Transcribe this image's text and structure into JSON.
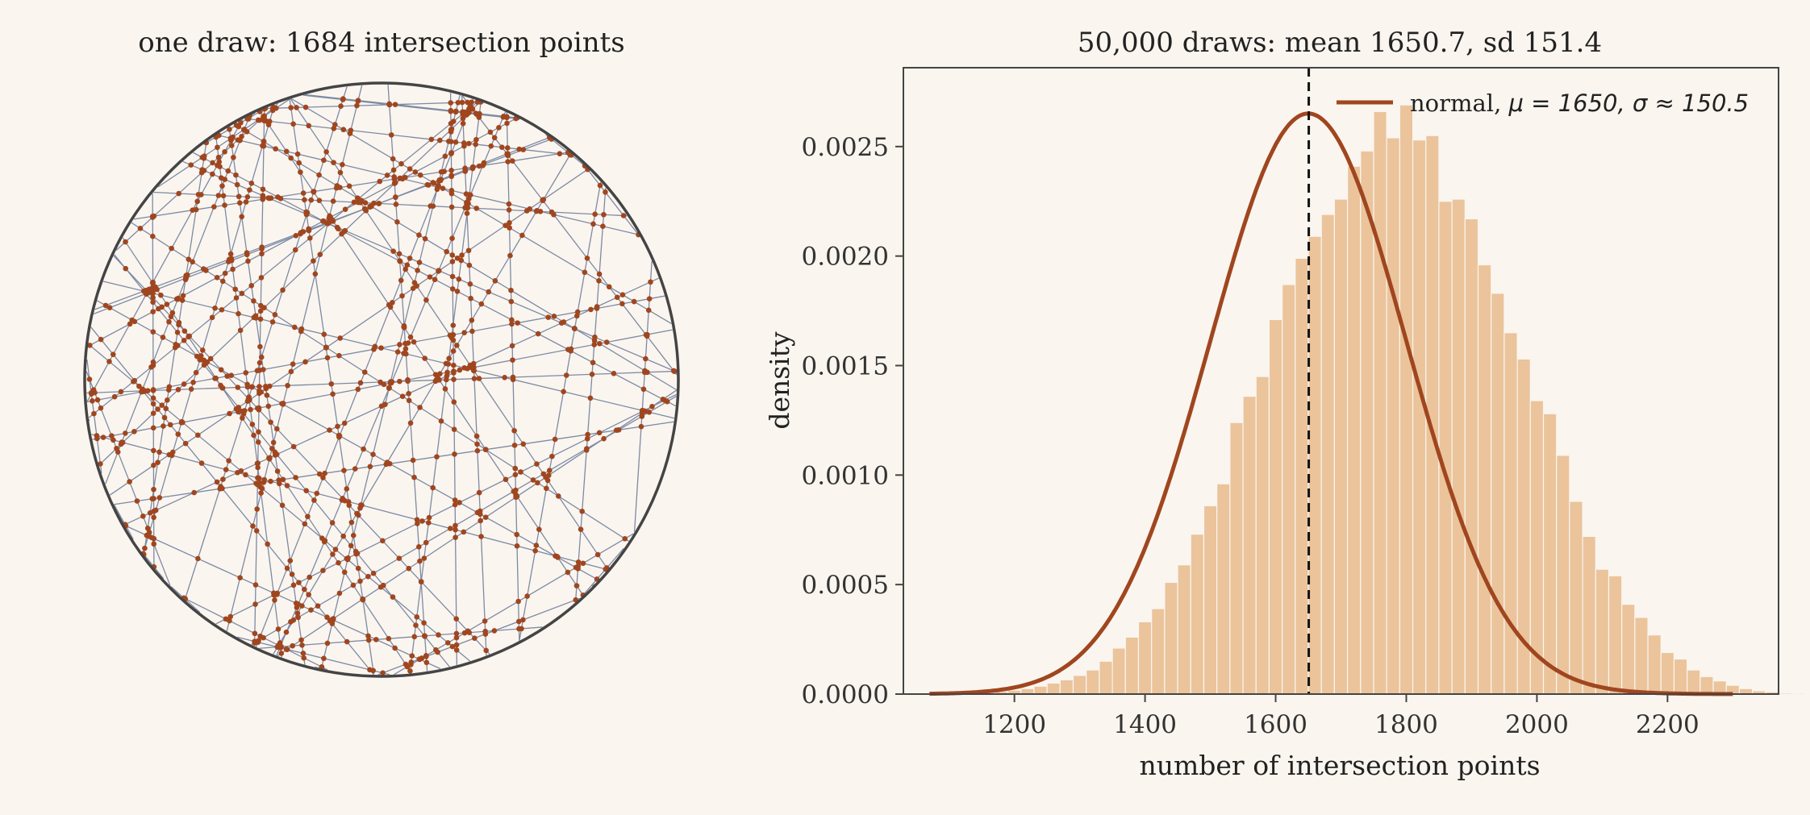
{
  "chart_data": [
    {
      "type": "scatter",
      "title": "one draw: 1684 intersection points",
      "shape": "circle",
      "point_color": "#a0461f",
      "line_color": "#7d8aa3",
      "circle_color": "#444444"
    },
    {
      "type": "bar",
      "title": "50,000 draws: mean 1650.7, sd 151.4",
      "xlabel": "number of intersection points",
      "ylabel": "density",
      "xlim": [
        1030,
        2370
      ],
      "ylim": [
        0,
        0.00286
      ],
      "xticks": [
        "1200",
        "1400",
        "1600",
        "1800",
        "2000",
        "2200"
      ],
      "yticks": [
        "0.0000",
        "0.0005",
        "0.0010",
        "0.0015",
        "0.0020",
        "0.0025"
      ],
      "bin_width": 20,
      "bins_start": 1070,
      "values": [
        4e-06,
        5e-06,
        6e-06,
        8e-06,
        1e-05,
        1.2e-05,
        1.8e-05,
        2.5e-05,
        3.6e-05,
        5e-05,
        6.5e-05,
        8.5e-05,
        0.00011,
        0.00015,
        0.00021,
        0.00026,
        0.00033,
        0.00039,
        0.00051,
        0.00059,
        0.00073,
        0.00086,
        0.00096,
        0.00124,
        0.00136,
        0.00145,
        0.00171,
        0.00187,
        0.00199,
        0.00209,
        0.00219,
        0.00226,
        0.00241,
        0.00248,
        0.00266,
        0.00254,
        0.00269,
        0.00253,
        0.00255,
        0.00225,
        0.00226,
        0.00217,
        0.00196,
        0.00183,
        0.00165,
        0.00153,
        0.00134,
        0.00128,
        0.00109,
        0.00088,
        0.00072,
        0.00057,
        0.00054,
        0.00041,
        0.00035,
        0.00027,
        0.00019,
        0.00016,
        0.00011,
        8e-05,
        6e-05,
        4e-05,
        2.5e-05,
        1.5e-05,
        1e-05,
        6e-06,
        5e-06,
        4e-06,
        3e-06,
        3e-06,
        2e-06,
        2e-06
      ],
      "bar_color": "#ebc49c",
      "normal_fit": {
        "mu": 1650,
        "sigma": 150.5,
        "x_range": [
          1070,
          2300
        ],
        "color": "#a0461f"
      },
      "mean_line": 1650.7,
      "legend": {
        "label": "normal, ",
        "math": "μ = 1650, σ ≈ 150.5",
        "position": "top-right"
      }
    }
  ]
}
